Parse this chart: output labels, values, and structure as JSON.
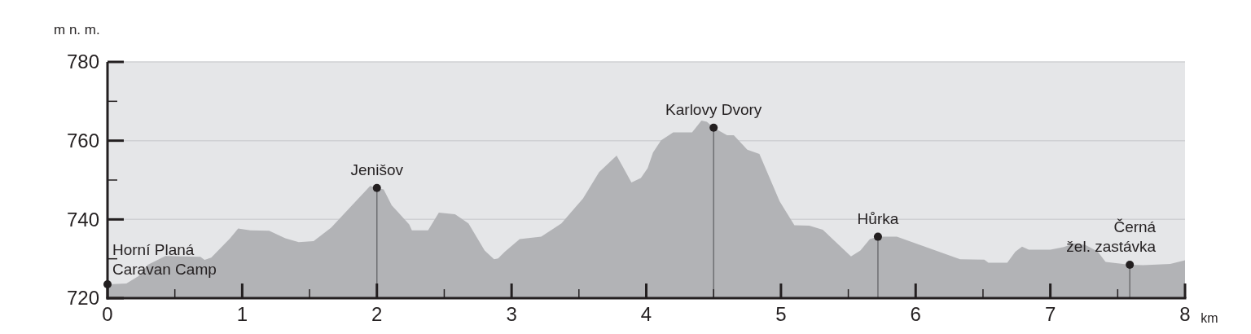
{
  "chart_data": {
    "type": "area",
    "xlabel": "km",
    "ylabel": "m n. m.",
    "xlim": [
      0,
      8
    ],
    "ylim": [
      720,
      780
    ],
    "xticks": [
      0,
      {
        "value": 0.5,
        "label": null
      },
      1,
      {
        "value": 1.5,
        "label": null
      },
      2,
      {
        "value": 2.5,
        "label": null
      },
      3,
      {
        "value": 3.5,
        "label": null
      },
      4,
      {
        "value": 4.5,
        "label": null
      },
      5,
      {
        "value": 5.5,
        "label": null
      },
      6,
      {
        "value": 6.5,
        "label": null
      },
      7,
      {
        "value": 7.5,
        "label": null
      },
      8
    ],
    "yticks": [
      720,
      {
        "value": 730,
        "label": null
      },
      740,
      {
        "value": 750,
        "label": null
      },
      760,
      {
        "value": 770,
        "label": null
      },
      780
    ],
    "grid": "y",
    "series": [
      {
        "color": "#b2b3b6",
        "x": [
          0,
          0.14,
          0.23,
          0.3,
          0.43,
          0.69,
          0.72,
          0.77,
          0.91,
          0.97,
          1.06,
          1.2,
          1.32,
          1.42,
          1.53,
          1.66,
          1.95,
          2.0,
          2.05,
          2.11,
          2.24,
          2.26,
          2.38,
          2.46,
          2.58,
          2.68,
          2.8,
          2.87,
          2.9,
          2.95,
          3.06,
          3.22,
          3.37,
          3.53,
          3.65,
          3.78,
          3.89,
          3.96,
          4.01,
          4.05,
          4.11,
          4.2,
          4.34,
          4.41,
          4.45,
          4.5,
          4.6,
          4.65,
          4.75,
          4.84,
          4.99,
          5.1,
          5.21,
          5.31,
          5.52,
          5.59,
          5.66,
          5.72,
          5.86,
          6.33,
          6.51,
          6.54,
          6.68,
          6.74,
          6.79,
          6.84,
          7.0,
          7.1,
          7.18,
          7.26,
          7.35,
          7.41,
          7.59,
          7.69,
          7.89,
          8.0
        ],
        "values": [
          723.5,
          723.7,
          725.6,
          728.5,
          730.7,
          730.5,
          729.7,
          730.3,
          735.2,
          737.7,
          737.2,
          737.1,
          735.2,
          734.2,
          734.5,
          737.9,
          748.5,
          748,
          747.6,
          743.6,
          738.7,
          737.2,
          737.2,
          741.7,
          741.3,
          739,
          732.1,
          729.9,
          730.1,
          731.8,
          735,
          735.6,
          739,
          745.3,
          752,
          756.2,
          749.4,
          750.5,
          753,
          757,
          760.1,
          762.1,
          762.1,
          765.1,
          764.8,
          763.3,
          761.4,
          761.4,
          757.7,
          756.6,
          744.6,
          738.5,
          738.4,
          737.4,
          730.6,
          732.1,
          735,
          735.6,
          735.6,
          729.9,
          729.8,
          729,
          729,
          731.8,
          733.1,
          732.3,
          732.3,
          733,
          733.9,
          733.5,
          731.9,
          729.2,
          728.5,
          728.4,
          728.7,
          729.6
        ]
      }
    ],
    "annotations": [
      {
        "text": "Horní Planá\nCaravan Camp",
        "x": 0,
        "y": 723.5
      },
      {
        "text": "Jenišov",
        "x": 2,
        "y": 748
      },
      {
        "text": "Karlovy Dvory",
        "x": 4.5,
        "y": 763.3
      },
      {
        "text": "Hůrka",
        "x": 5.72,
        "y": 735.6
      },
      {
        "text": "Černá\nžel. zastávka",
        "x": 7.59,
        "y": 728.5
      }
    ]
  }
}
